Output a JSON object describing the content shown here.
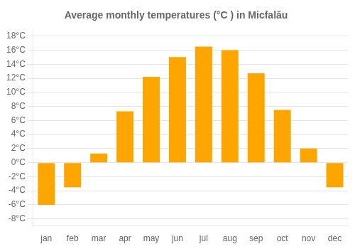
{
  "chart_data": {
    "type": "bar",
    "title": "Average monthly temperatures (°C ) in Micfalău",
    "categories": [
      "jan",
      "feb",
      "mar",
      "apr",
      "may",
      "jun",
      "jul",
      "aug",
      "sep",
      "oct",
      "nov",
      "dec"
    ],
    "values": [
      -6.0,
      -3.5,
      1.3,
      7.3,
      12.2,
      15.0,
      16.5,
      16.0,
      12.7,
      7.5,
      2.0,
      -3.5
    ],
    "color": "#FFA500",
    "ylim": [
      -9,
      19
    ],
    "yticks": [
      {
        "value": -8,
        "label": "-8°C"
      },
      {
        "value": -6,
        "label": "-6°C"
      },
      {
        "value": -4,
        "label": "-4°C"
      },
      {
        "value": -2,
        "label": "-2°C"
      },
      {
        "value": 0,
        "label": "0°C"
      },
      {
        "value": 2,
        "label": "2°C"
      },
      {
        "value": 4,
        "label": "4°C"
      },
      {
        "value": 6,
        "label": "6°C"
      },
      {
        "value": 8,
        "label": "8°C"
      },
      {
        "value": 10,
        "label": "10°C"
      },
      {
        "value": 12,
        "label": "12°C"
      },
      {
        "value": 14,
        "label": "14°C"
      },
      {
        "value": 16,
        "label": "16°C"
      },
      {
        "value": 18,
        "label": "18°C"
      }
    ],
    "grid": true
  }
}
